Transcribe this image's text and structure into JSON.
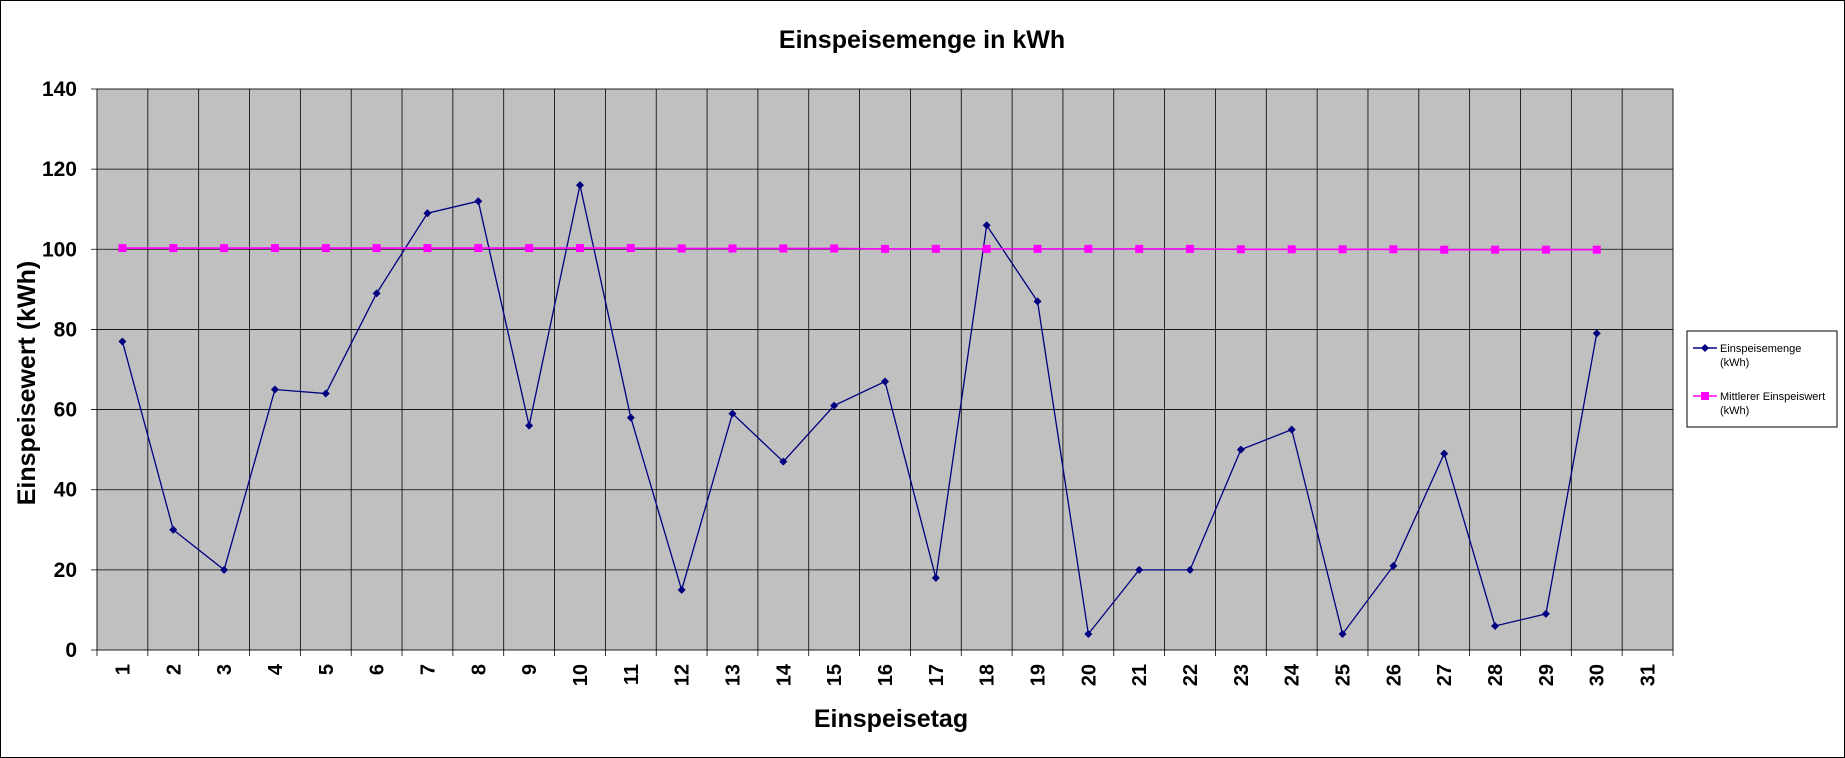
{
  "chart_data": {
    "type": "line",
    "title": "Einspeisemenge in kWh",
    "xlabel": "Einspeisetag",
    "ylabel": "Einspeisewert  (kWh)",
    "ylim": [
      0,
      140
    ],
    "yticks": [
      0,
      20,
      40,
      60,
      80,
      100,
      120,
      140
    ],
    "categories": [
      "1",
      "2",
      "3",
      "4",
      "5",
      "6",
      "7",
      "8",
      "9",
      "10",
      "11",
      "12",
      "13",
      "14",
      "15",
      "16",
      "17",
      "18",
      "19",
      "20",
      "21",
      "22",
      "23",
      "24",
      "25",
      "26",
      "27",
      "28",
      "29",
      "30",
      "31"
    ],
    "grid": true,
    "legend_position": "right",
    "series": [
      {
        "name": "Einspeisemenge (kWh)",
        "legend_lines": [
          "Einspeisemenge",
          "(kWh)"
        ],
        "color": "#000080",
        "marker": "diamond",
        "values": [
          77,
          30,
          20,
          65,
          64,
          89,
          109,
          112,
          56,
          116,
          58,
          15,
          59,
          47,
          61,
          67,
          18,
          106,
          87,
          4,
          20,
          20,
          50,
          55,
          4,
          21,
          49,
          6,
          9,
          79,
          null
        ]
      },
      {
        "name": "Mittlerer Einspeiswert (kWh)",
        "legend_lines": [
          "Mittlerer Einspeiswert",
          "(kWh)"
        ],
        "color": "#ff00ff",
        "marker": "square",
        "values": [
          100.3,
          100.3,
          100.3,
          100.3,
          100.3,
          100.3,
          100.3,
          100.3,
          100.3,
          100.3,
          100.3,
          100.2,
          100.2,
          100.2,
          100.2,
          100.1,
          100.1,
          100.1,
          100.1,
          100.1,
          100.1,
          100.1,
          100.0,
          100.0,
          100.0,
          100.0,
          99.9,
          99.9,
          99.9,
          99.9,
          null
        ]
      }
    ],
    "plot_background": "#c0c0c0",
    "gridline_color": "#000000"
  }
}
